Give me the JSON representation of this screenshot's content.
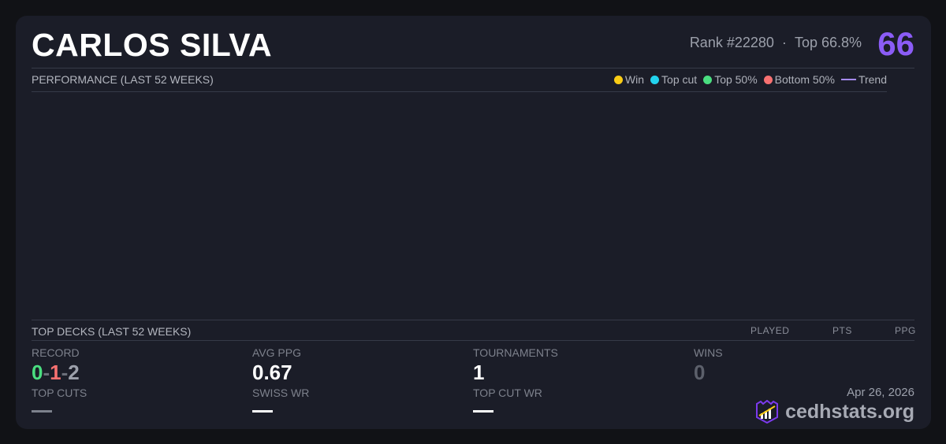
{
  "player": {
    "name": "CARLOS SILVA",
    "rank": "Rank #22280",
    "separator": "·",
    "top_percent": "Top 66.8%",
    "score": "66"
  },
  "performance": {
    "title": "PERFORMANCE (LAST 52 WEEKS)",
    "legend": [
      {
        "label": "Win",
        "color": "#facc15"
      },
      {
        "label": "Top cut",
        "color": "#22d3ee"
      },
      {
        "label": "Top 50%",
        "color": "#4ade80"
      },
      {
        "label": "Bottom 50%",
        "color": "#f87171"
      },
      {
        "label": "Trend",
        "color": "#a78bfa"
      }
    ]
  },
  "top_decks": {
    "title": "TOP DECKS (LAST 52 WEEKS)",
    "columns": [
      "PLAYED",
      "PTS",
      "PPG"
    ]
  },
  "stats": {
    "record": {
      "label": "RECORD",
      "wins": "0",
      "losses": "1",
      "draws": "2",
      "sep": "-"
    },
    "avg_ppg": {
      "label": "AVG PPG",
      "value": "0.67"
    },
    "tournaments": {
      "label": "TOURNAMENTS",
      "value": "1"
    },
    "wins": {
      "label": "WINS",
      "value": "0"
    },
    "top_cuts": {
      "label": "TOP CUTS",
      "value": "—"
    },
    "swiss_wr": {
      "label": "SWISS WR",
      "value": "—"
    },
    "top_cut_wr": {
      "label": "TOP CUT WR",
      "value": "—"
    }
  },
  "footer": {
    "date": "Apr 26, 2026",
    "brand": "cedhstats.org",
    "logo_icon": "shield-chart-icon"
  }
}
